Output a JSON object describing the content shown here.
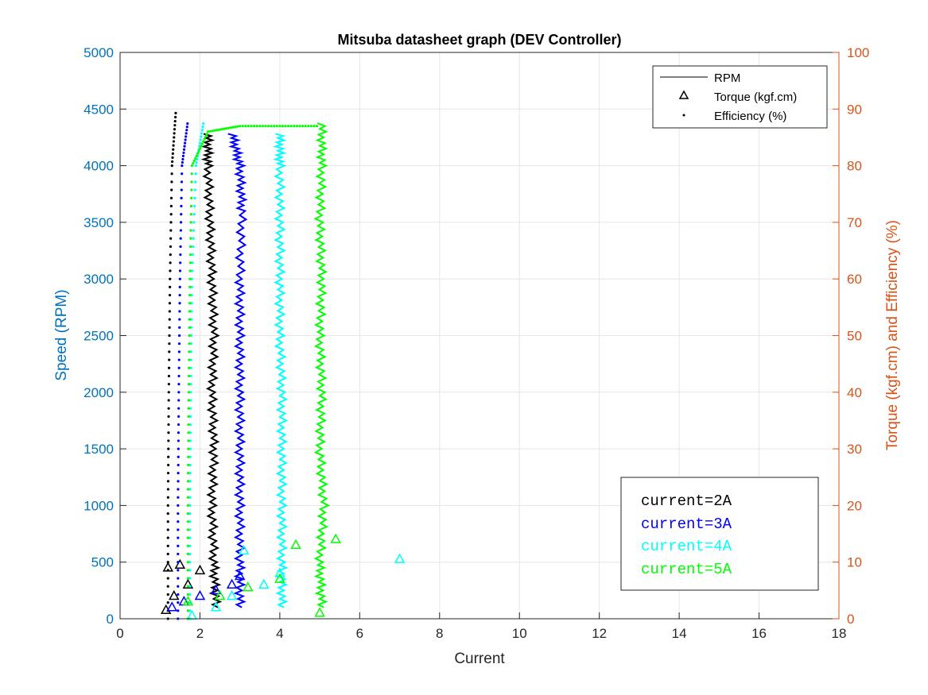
{
  "chart_data": {
    "type": "line",
    "title": "Mitsuba datasheet graph (DEV Controller)",
    "xlabel": "Current",
    "ylabel_left": "Speed (RPM)",
    "ylabel_right": "Torque (kgf.cm) and Efficiency (%)",
    "xlim": [
      0,
      18
    ],
    "ylim_left": [
      0,
      5000
    ],
    "ylim_right": [
      0,
      100
    ],
    "xticks": [
      "0",
      "2",
      "4",
      "6",
      "8",
      "10",
      "12",
      "14",
      "16",
      "18"
    ],
    "yticks_left": [
      "0",
      "500",
      "1000",
      "1500",
      "2000",
      "2500",
      "3000",
      "3500",
      "4000",
      "4500",
      "5000"
    ],
    "yticks_right": [
      "0",
      "10",
      "20",
      "30",
      "40",
      "50",
      "60",
      "70",
      "80",
      "90",
      "100"
    ],
    "grid": true,
    "colors": {
      "left_axis": "#0072BD",
      "right_axis": "#D95319",
      "c2A": "#000000",
      "c3A": "#0000ff",
      "c4A": "#00ffff",
      "c5A": "#00ff00"
    },
    "legend": {
      "placement": "top-right",
      "entries": [
        {
          "label": "RPM",
          "marker": "line"
        },
        {
          "label": "Torque (kgf.cm)",
          "marker": "triangle"
        },
        {
          "label": "Efficiency (%)",
          "marker": "dot"
        }
      ]
    },
    "annotation_box": {
      "placement": "bottom-right",
      "lines": [
        {
          "text": "current=2A",
          "color": "#000000"
        },
        {
          "text": "current=3A",
          "color": "#0000ff"
        },
        {
          "text": "current=4A",
          "color": "#00ffff"
        },
        {
          "text": "current=5A",
          "color": "#00ff00"
        }
      ]
    },
    "series": [
      {
        "group": "current=2A",
        "color": "#000000",
        "rpm": [
          [
            2.4,
            100
          ],
          [
            2.35,
            500
          ],
          [
            2.3,
            1000
          ],
          [
            2.35,
            1500
          ],
          [
            2.3,
            2000
          ],
          [
            2.35,
            2500
          ],
          [
            2.3,
            3000
          ],
          [
            2.25,
            3500
          ],
          [
            2.2,
            4000
          ],
          [
            2.2,
            4300
          ]
        ],
        "efficiency_pct": [
          [
            1.2,
            0
          ],
          [
            1.2,
            20
          ],
          [
            1.22,
            40
          ],
          [
            1.25,
            60
          ],
          [
            1.3,
            80
          ],
          [
            1.4,
            90
          ]
        ],
        "torque_kgfcm": [
          [
            1.15,
            1.5
          ],
          [
            1.2,
            9
          ],
          [
            1.35,
            4
          ],
          [
            1.5,
            9.5
          ],
          [
            1.7,
            6
          ],
          [
            2.0,
            8.5
          ]
        ]
      },
      {
        "group": "current=3A",
        "color": "#0000ff",
        "rpm": [
          [
            3.0,
            100
          ],
          [
            3.0,
            500
          ],
          [
            3.0,
            1000
          ],
          [
            3.0,
            1500
          ],
          [
            3.0,
            2000
          ],
          [
            3.0,
            2500
          ],
          [
            3.0,
            3000
          ],
          [
            3.05,
            3600
          ],
          [
            3.0,
            4000
          ],
          [
            2.8,
            4300
          ]
        ],
        "efficiency_pct": [
          [
            1.45,
            0
          ],
          [
            1.45,
            20
          ],
          [
            1.47,
            40
          ],
          [
            1.5,
            60
          ],
          [
            1.55,
            80
          ],
          [
            1.7,
            88
          ]
        ],
        "torque_kgfcm": [
          [
            1.3,
            2
          ],
          [
            1.6,
            3
          ],
          [
            2.0,
            4
          ],
          [
            2.4,
            5
          ],
          [
            2.8,
            6
          ],
          [
            3.0,
            7.5
          ]
        ]
      },
      {
        "group": "current=4A",
        "color": "#00ffff",
        "rpm": [
          [
            4.05,
            100
          ],
          [
            4.05,
            500
          ],
          [
            4.05,
            1000
          ],
          [
            4.05,
            1500
          ],
          [
            4.05,
            2000
          ],
          [
            4.0,
            2500
          ],
          [
            4.0,
            3000
          ],
          [
            4.0,
            3500
          ],
          [
            4.0,
            4000
          ],
          [
            4.0,
            4300
          ]
        ],
        "efficiency_pct": [
          [
            1.75,
            0
          ],
          [
            1.75,
            20
          ],
          [
            1.77,
            40
          ],
          [
            1.8,
            60
          ],
          [
            1.9,
            80
          ],
          [
            2.1,
            88
          ]
        ],
        "torque_kgfcm": [
          [
            1.8,
            0.5
          ],
          [
            2.4,
            2
          ],
          [
            2.8,
            4
          ],
          [
            3.1,
            12
          ],
          [
            3.6,
            6
          ],
          [
            4.0,
            8
          ],
          [
            7.0,
            10.5
          ]
        ]
      },
      {
        "group": "current=5A",
        "color": "#00ff00",
        "rpm": [
          [
            5.05,
            100
          ],
          [
            5.0,
            500
          ],
          [
            5.1,
            1000
          ],
          [
            5.0,
            1500
          ],
          [
            5.05,
            2000
          ],
          [
            5.0,
            2500
          ],
          [
            5.05,
            3000
          ],
          [
            5.0,
            3500
          ],
          [
            5.05,
            4000
          ],
          [
            5.05,
            4400
          ]
        ],
        "efficiency_pct": [
          [
            1.7,
            0
          ],
          [
            1.7,
            20
          ],
          [
            1.72,
            40
          ],
          [
            1.75,
            60
          ],
          [
            1.8,
            80
          ],
          [
            2.2,
            86
          ],
          [
            3.0,
            87
          ],
          [
            4.0,
            87
          ],
          [
            5.0,
            87
          ]
        ],
        "torque_kgfcm": [
          [
            1.7,
            3
          ],
          [
            2.5,
            4
          ],
          [
            3.2,
            5.5
          ],
          [
            4.0,
            7
          ],
          [
            4.4,
            13
          ],
          [
            5.0,
            1
          ],
          [
            5.4,
            14
          ]
        ]
      }
    ]
  }
}
